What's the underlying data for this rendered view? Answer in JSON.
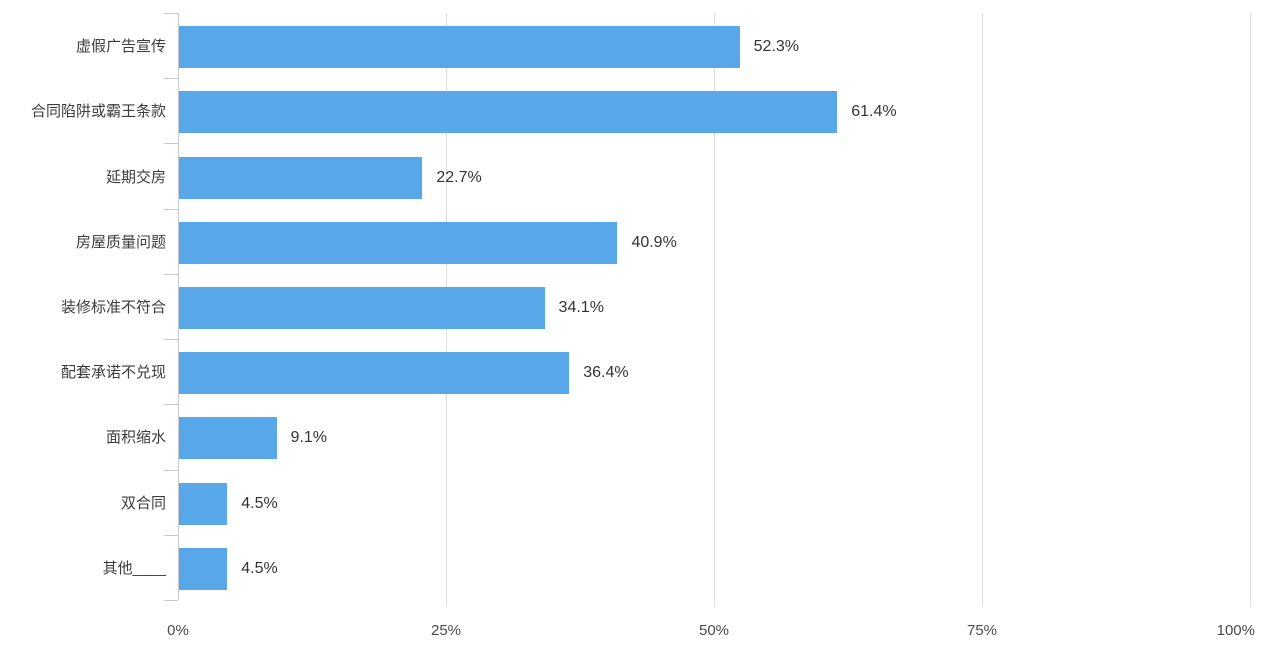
{
  "chart_data": {
    "type": "bar",
    "orientation": "horizontal",
    "categories": [
      "虚假广告宣传",
      "合同陷阱或霸王条款",
      "延期交房",
      "房屋质量问题",
      "装修标准不符合",
      "配套承诺不兑现",
      "面积缩水",
      "双合同",
      "其他____"
    ],
    "values": [
      52.3,
      61.4,
      22.7,
      40.9,
      34.1,
      36.4,
      9.1,
      4.5,
      4.5
    ],
    "value_labels": [
      "52.3%",
      "61.4%",
      "22.7%",
      "40.9%",
      "34.1%",
      "36.4%",
      "9.1%",
      "4.5%",
      "4.5%"
    ],
    "xlabel": "",
    "ylabel": "",
    "x_axis": {
      "min": 0,
      "max": 100,
      "tick_labels": [
        "0%",
        "25%",
        "50%",
        "75%",
        "100%"
      ],
      "tick_values": [
        0,
        25,
        50,
        75,
        100
      ]
    },
    "grid": true,
    "legend_position": "none",
    "colors": {
      "bar": "#58a7e8",
      "grid_line": "#dcdcdc",
      "axis_line": "#c9c9c9",
      "category_text": "#3c3c3c",
      "value_text": "#333333",
      "tick_text": "#4a4a4a",
      "background": "#ffffff"
    }
  }
}
